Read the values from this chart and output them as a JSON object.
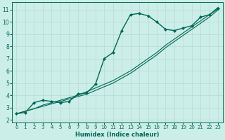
{
  "xlabel": "Humidex (Indice chaleur)",
  "bg_color": "#cceee8",
  "grid_color": "#b8d8d4",
  "line_color": "#006655",
  "xlim": [
    -0.5,
    23.5
  ],
  "ylim": [
    1.8,
    11.6
  ],
  "xticks": [
    0,
    1,
    2,
    3,
    4,
    5,
    6,
    7,
    8,
    9,
    10,
    11,
    12,
    13,
    14,
    15,
    16,
    17,
    18,
    19,
    20,
    21,
    22,
    23
  ],
  "yticks": [
    2,
    3,
    4,
    5,
    6,
    7,
    8,
    9,
    10,
    11
  ],
  "curve_main_x": [
    0,
    1,
    2,
    3,
    4,
    5,
    6,
    7,
    8,
    9,
    10,
    11,
    12,
    13,
    14,
    15,
    16,
    17,
    18,
    19,
    20,
    21,
    22,
    23
  ],
  "curve_main_y": [
    2.5,
    2.6,
    3.4,
    3.6,
    3.5,
    3.4,
    3.5,
    4.1,
    4.2,
    4.9,
    7.0,
    7.5,
    9.3,
    10.6,
    10.7,
    10.5,
    10.0,
    9.4,
    9.3,
    9.5,
    9.7,
    10.4,
    10.6,
    11.1
  ],
  "curve_ref1_x": [
    0,
    1,
    2,
    3,
    4,
    5,
    6,
    7,
    8,
    9,
    10,
    11,
    12,
    13,
    14,
    15,
    16,
    17,
    18,
    19,
    20,
    21,
    22,
    23
  ],
  "curve_ref1_y": [
    2.5,
    2.7,
    2.9,
    3.1,
    3.3,
    3.5,
    3.7,
    3.9,
    4.1,
    4.4,
    4.7,
    5.0,
    5.4,
    5.8,
    6.3,
    6.8,
    7.3,
    7.9,
    8.4,
    8.9,
    9.4,
    9.9,
    10.4,
    11.0
  ],
  "curve_ref2_x": [
    0,
    1,
    2,
    3,
    4,
    5,
    6,
    7,
    8,
    9,
    10,
    11,
    12,
    13,
    14,
    15,
    16,
    17,
    18,
    19,
    20,
    21,
    22,
    23
  ],
  "curve_ref2_y": [
    2.5,
    2.7,
    2.9,
    3.2,
    3.4,
    3.6,
    3.8,
    4.0,
    4.3,
    4.6,
    4.9,
    5.2,
    5.6,
    6.0,
    6.5,
    7.0,
    7.5,
    8.1,
    8.6,
    9.1,
    9.6,
    10.1,
    10.6,
    11.2
  ],
  "xlabel_fontsize": 6,
  "tick_fontsize": 5,
  "linewidth_main": 1.0,
  "linewidth_ref": 0.8,
  "marker_size": 2.0
}
